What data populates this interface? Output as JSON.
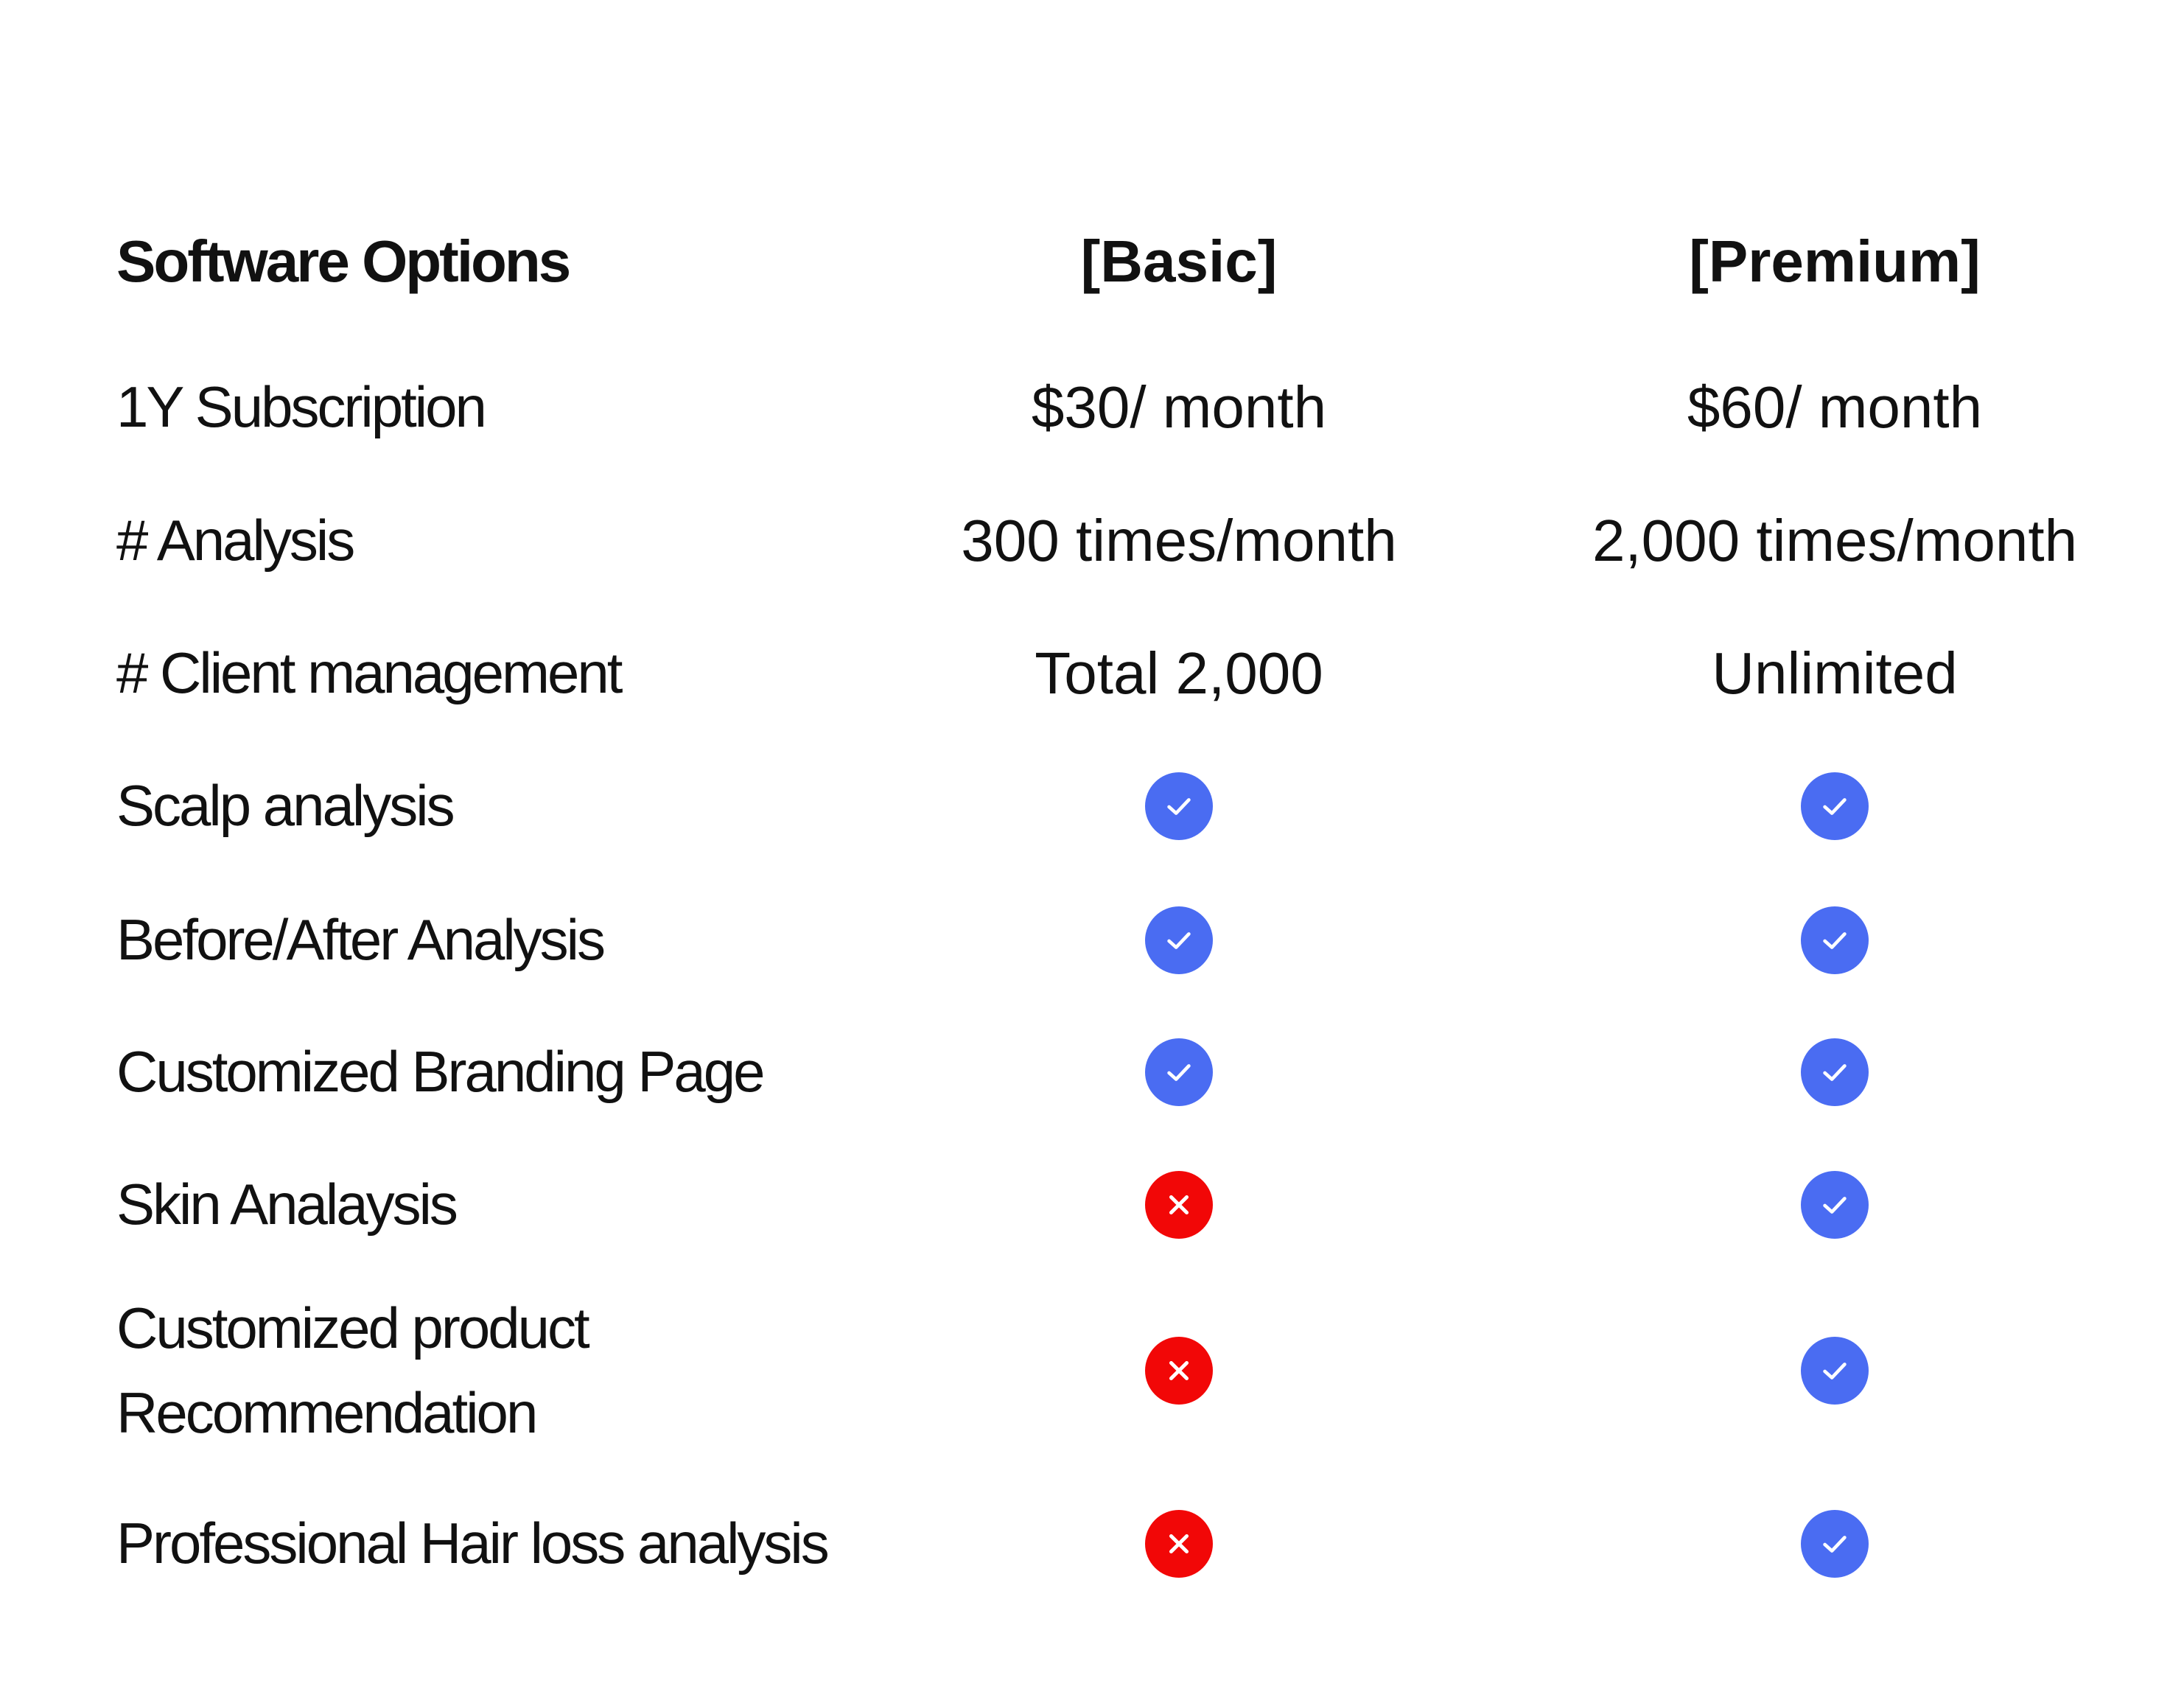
{
  "columns": {
    "feature": "Software Options",
    "basic": "[Basic]",
    "premium": "[Premium]"
  },
  "text_rows": [
    {
      "feature": "1Y Subscription",
      "basic": "$30/ month",
      "premium": "$60/ month"
    },
    {
      "feature": "# Analysis",
      "basic": "300 times/month",
      "premium": "2,000 times/month"
    },
    {
      "feature": "# Client management",
      "basic": "Total 2,000",
      "premium": "Unlimited"
    }
  ],
  "feature_rows": [
    {
      "feature": "Scalp analysis",
      "basic": "check-icon",
      "premium": "check-icon"
    },
    {
      "feature": "Before/After Analysis",
      "basic": "check-icon",
      "premium": "check-icon"
    },
    {
      "feature": "Customized Branding Page",
      "basic": "check-icon",
      "premium": "check-icon"
    },
    {
      "feature": "Skin Analaysis",
      "basic": "cross-icon",
      "premium": "check-icon"
    },
    {
      "feature_line1": "Customized product",
      "feature_line2": "Recommendation",
      "basic": "cross-icon",
      "premium": "check-icon"
    },
    {
      "feature": "Professional Hair loss analysis",
      "basic": "cross-icon",
      "premium": "check-icon"
    }
  ],
  "colors": {
    "check": "#4A6CF2",
    "cross": "#F20707",
    "text": "#111111",
    "background": "#FFFFFF"
  }
}
